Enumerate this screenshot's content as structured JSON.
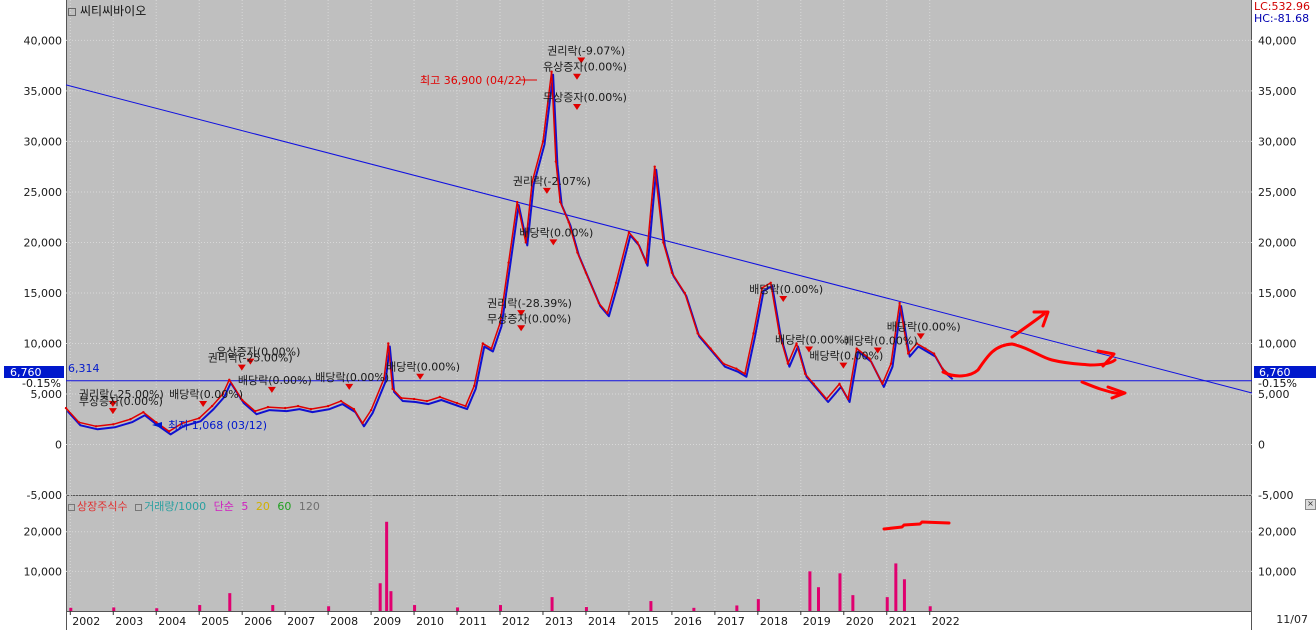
{
  "title": "씨티씨바이오",
  "lc_label": "LC:532.96",
  "hc_label": "HC:-81.68",
  "current_price_label": "6,760",
  "current_price_right": "6,760",
  "current_pct_left": "-0.15%",
  "current_pct_right": "-0.15%",
  "reference_price_label": "6,314",
  "max_label": "최고 36,900 (04/22)",
  "min_label": "최저 1,068 (03/12)",
  "end_date": "11/07",
  "volume_legend": [
    {
      "text": "상장주식수",
      "color": "#e03030"
    },
    {
      "text": "거래량/1000",
      "color": "#2aa0a0"
    },
    {
      "text": "단순",
      "color": "#d020c0"
    },
    {
      "text": "5",
      "color": "#d020c0"
    },
    {
      "text": "20",
      "color": "#d0b000"
    },
    {
      "text": "60",
      "color": "#20a020"
    },
    {
      "text": "120",
      "color": "#707070"
    }
  ],
  "chart_data": [
    {
      "type": "candlestick-line",
      "title": "씨티씨바이오",
      "x_ticks": [
        "2002",
        "2003",
        "2004",
        "2005",
        "2006",
        "2007",
        "2008",
        "2009",
        "2010",
        "2011",
        "2012",
        "2013",
        "2014",
        "2015",
        "2016",
        "2017",
        "2018",
        "2019",
        "2020",
        "2021",
        "2022"
      ],
      "y_ticks": [
        "40,000",
        "35,000",
        "30,000",
        "25,000",
        "20,000",
        "15,000",
        "10,000",
        "5,000",
        "0",
        "-5,000"
      ],
      "y_tick_values": [
        40000,
        35000,
        30000,
        25000,
        20000,
        15000,
        10000,
        5000,
        0,
        -5000
      ],
      "ylim": [
        -5000,
        44000
      ],
      "x_range": [
        2001.9,
        2029.5
      ],
      "series": [
        {
          "x": [
            2001.9,
            2002.2,
            2002.6,
            2003.0,
            2003.4,
            2003.7,
            2004.0,
            2004.3,
            2004.6,
            2005.0,
            2005.3,
            2005.55,
            2005.7,
            2006.0,
            2006.3,
            2006.6,
            2007.0,
            2007.3,
            2007.6,
            2008.0,
            2008.3,
            2008.6,
            2008.8,
            2009.0,
            2009.3,
            2009.4,
            2009.5,
            2009.7,
            2010.0,
            2010.3,
            2010.6,
            2011.0,
            2011.2,
            2011.4,
            2011.6,
            2011.8,
            2012.0,
            2012.2,
            2012.4,
            2012.6,
            2012.75,
            2013.0,
            2013.2,
            2013.3,
            2013.4,
            2013.6,
            2013.8,
            2014.0,
            2014.3,
            2014.5,
            2014.7,
            2015.0,
            2015.2,
            2015.4,
            2015.6,
            2015.8,
            2016.0,
            2016.3,
            2016.6,
            2016.9,
            2017.2,
            2017.5,
            2017.7,
            2017.9,
            2018.1,
            2018.3,
            2018.5,
            2018.7,
            2018.9,
            2019.1,
            2019.3,
            2019.6,
            2019.9,
            2020.1,
            2020.3,
            2020.6,
            2020.9,
            2021.1,
            2021.3,
            2021.5,
            2021.7,
            2021.9,
            2022.1,
            2022.3,
            2022.5
          ],
          "y": [
            3600,
            2200,
            1800,
            2000,
            2500,
            3200,
            2200,
            1300,
            2100,
            2600,
            3800,
            5000,
            6400,
            4400,
            3300,
            3700,
            3600,
            3800,
            3500,
            3800,
            4300,
            3500,
            2100,
            3400,
            6500,
            10000,
            5500,
            4600,
            4500,
            4300,
            4700,
            4100,
            3800,
            5800,
            10000,
            9500,
            12000,
            18000,
            24000,
            20000,
            26000,
            30000,
            36900,
            28000,
            24000,
            22000,
            19000,
            17000,
            14000,
            13000,
            16000,
            21000,
            20000,
            18000,
            27500,
            20000,
            17000,
            15000,
            11000,
            9500,
            8000,
            7500,
            7000,
            11000,
            15500,
            16000,
            11000,
            8000,
            10000,
            7000,
            6000,
            4500,
            6000,
            4500,
            9500,
            8500,
            6000,
            8000,
            14000,
            9000,
            10000,
            9500,
            9000,
            7500,
            6760
          ],
          "color": "#e00000"
        }
      ],
      "trendlines": [
        {
          "x": [
            2001.9,
            2029.5
          ],
          "y": [
            35600,
            5100
          ],
          "color": "#1010e0"
        },
        {
          "x": [
            2001.9,
            2029.5
          ],
          "y": [
            6314,
            6314
          ],
          "color": "#1010e0"
        }
      ],
      "annotations": [
        {
          "text": "권리락(-9.07%)",
          "x": 2013.1,
          "y": 38600
        },
        {
          "text": "유상증자(0.00%)",
          "x": 2013.0,
          "y": 37000
        },
        {
          "text": "무상증자(0.00%)",
          "x": 2013.0,
          "y": 34000
        },
        {
          "text": "권리락(-2.07%)",
          "x": 2012.3,
          "y": 25700
        },
        {
          "text": "배당락(0.00%)",
          "x": 2012.45,
          "y": 20600
        },
        {
          "text": "권리락(-28.39%)",
          "x": 2011.7,
          "y": 13600
        },
        {
          "text": "무상증자(0.00%)",
          "x": 2011.7,
          "y": 12100
        },
        {
          "text": "배당락(0.00%)",
          "x": 2009.35,
          "y": 7300
        },
        {
          "text": "배당락(0.00%)",
          "x": 2007.7,
          "y": 6300
        },
        {
          "text": "배당락(0.00%)",
          "x": 2005.9,
          "y": 6000
        },
        {
          "text": "유상증자(0.00%)",
          "x": 2005.4,
          "y": 8800
        },
        {
          "text": "권리락(-25.00%)",
          "x": 2005.2,
          "y": 8200
        },
        {
          "text": "배당락(0.00%)",
          "x": 2004.3,
          "y": 4600
        },
        {
          "text": "권리락(-25.00%)",
          "x": 2002.2,
          "y": 4600
        },
        {
          "text": "무상증자(0.00%)",
          "x": 2002.2,
          "y": 3900
        },
        {
          "text": "배당락(0.00%)",
          "x": 2017.8,
          "y": 15000
        },
        {
          "text": "배당락(0.00%)",
          "x": 2018.4,
          "y": 10000
        },
        {
          "text": "배당락(0.00%)",
          "x": 2019.2,
          "y": 8400
        },
        {
          "text": "배당락(0.00%)",
          "x": 2020.0,
          "y": 9900
        },
        {
          "text": "배당락(0.00%)",
          "x": 2021.0,
          "y": 11300
        }
      ]
    },
    {
      "type": "bar",
      "title": "거래량/1000",
      "y_ticks": [
        "20,000",
        "10,000"
      ],
      "y_tick_values": [
        20000,
        10000
      ],
      "ylim": [
        0,
        29000
      ],
      "x": [
        2002.0,
        2003.0,
        2004.0,
        2005.0,
        2005.7,
        2006.7,
        2008.0,
        2009.2,
        2009.35,
        2009.45,
        2010.0,
        2011.0,
        2012.0,
        2013.2,
        2014.0,
        2015.5,
        2016.5,
        2017.5,
        2018.0,
        2019.2,
        2019.4,
        2019.9,
        2020.2,
        2021.0,
        2021.2,
        2021.4,
        2022.0
      ],
      "values": [
        800,
        900,
        700,
        1500,
        4500,
        1500,
        1200,
        7000,
        22500,
        5000,
        1500,
        900,
        1500,
        3500,
        1000,
        2500,
        800,
        1400,
        3000,
        10000,
        6000,
        9500,
        4000,
        3500,
        12000,
        8000,
        1200
      ],
      "color": "#e0006f"
    }
  ]
}
